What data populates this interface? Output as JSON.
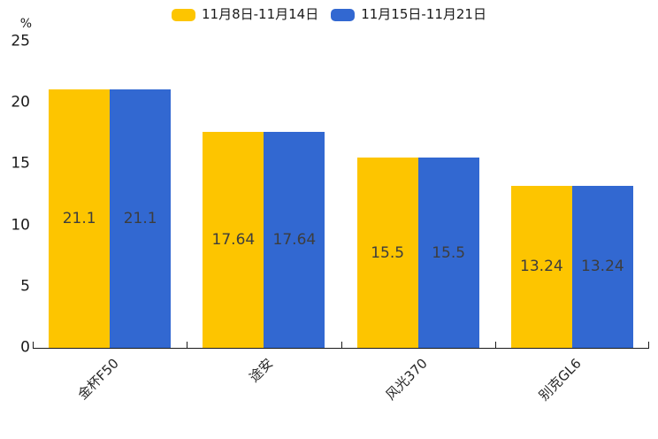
{
  "chart_data": {
    "type": "bar",
    "title": "",
    "unit_label": "%",
    "categories": [
      "金杯F50",
      "途安",
      "风光370",
      "别克GL6"
    ],
    "series": [
      {
        "name": "11月8日-11月14日",
        "color": "#FDC500",
        "values": [
          21.1,
          17.64,
          15.5,
          13.24
        ]
      },
      {
        "name": "11月15日-11月21日",
        "color": "#3268D1",
        "values": [
          21.1,
          17.64,
          15.5,
          13.24
        ]
      }
    ],
    "value_labels": [
      [
        "21.1",
        "17.64",
        "15.5",
        "13.24"
      ],
      [
        "21.1",
        "17.64",
        "15.5",
        "13.24"
      ]
    ],
    "ylim": [
      0,
      25
    ],
    "yticks": [
      "0",
      "5",
      "10",
      "15",
      "20",
      "25"
    ],
    "grid": false,
    "legend_position": "top-center",
    "value_label_position": "inside-center"
  },
  "colors": {
    "axis": "#1a1a1a",
    "tick_text": "#1a1a1a",
    "value_text": "#3d3d3d",
    "background": "#ffffff"
  }
}
